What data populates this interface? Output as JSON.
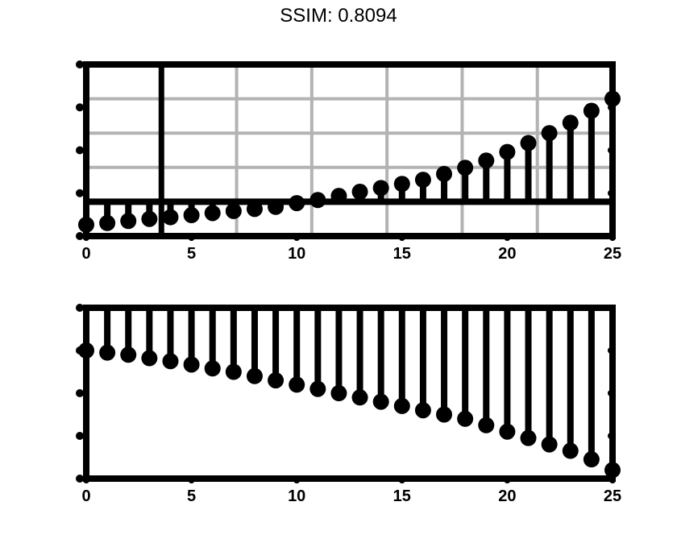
{
  "title": "SSIM: 0.8094",
  "colors": {
    "stroke": "#000000",
    "grid": "#b3b3b3",
    "background": "#ffffff"
  },
  "chart_data": [
    {
      "type": "stem",
      "title": "",
      "xlabel": "",
      "ylabel": "",
      "xlim": [
        0,
        25
      ],
      "ylim": [
        0,
        5
      ],
      "grid": true,
      "xticks": [
        0,
        5,
        10,
        15,
        20,
        25
      ],
      "xtick_labels": [
        "0",
        "5",
        "10",
        "15",
        "20",
        "25"
      ],
      "baseline_y": 1,
      "x": [
        0,
        1,
        2,
        3,
        4,
        5,
        6,
        7,
        8,
        9,
        10,
        11,
        12,
        13,
        14,
        15,
        16,
        17,
        18,
        19,
        20,
        21,
        22,
        23,
        24,
        25
      ],
      "values": [
        0.33,
        0.38,
        0.44,
        0.5,
        0.55,
        0.61,
        0.67,
        0.73,
        0.79,
        0.85,
        0.96,
        1.05,
        1.17,
        1.29,
        1.4,
        1.52,
        1.64,
        1.81,
        1.99,
        2.2,
        2.45,
        2.71,
        3.0,
        3.3,
        3.65,
        4.0
      ]
    },
    {
      "type": "stem",
      "title": "",
      "xlabel": "",
      "ylabel": "",
      "xlim": [
        0,
        25
      ],
      "ylim": [
        -4,
        0
      ],
      "grid": false,
      "xticks": [
        0,
        5,
        10,
        15,
        20,
        25
      ],
      "xtick_labels": [
        "0",
        "5",
        "10",
        "15",
        "20",
        "25"
      ],
      "baseline_y": 0,
      "x": [
        0,
        1,
        2,
        3,
        4,
        5,
        6,
        7,
        8,
        9,
        10,
        11,
        12,
        13,
        14,
        15,
        16,
        17,
        18,
        19,
        20,
        21,
        22,
        23,
        24,
        25
      ],
      "values": [
        -1.0,
        -1.05,
        -1.1,
        -1.18,
        -1.25,
        -1.33,
        -1.42,
        -1.5,
        -1.6,
        -1.7,
        -1.8,
        -1.9,
        -2.0,
        -2.1,
        -2.2,
        -2.3,
        -2.4,
        -2.5,
        -2.6,
        -2.75,
        -2.9,
        -3.05,
        -3.2,
        -3.35,
        -3.55,
        -3.8
      ]
    }
  ]
}
